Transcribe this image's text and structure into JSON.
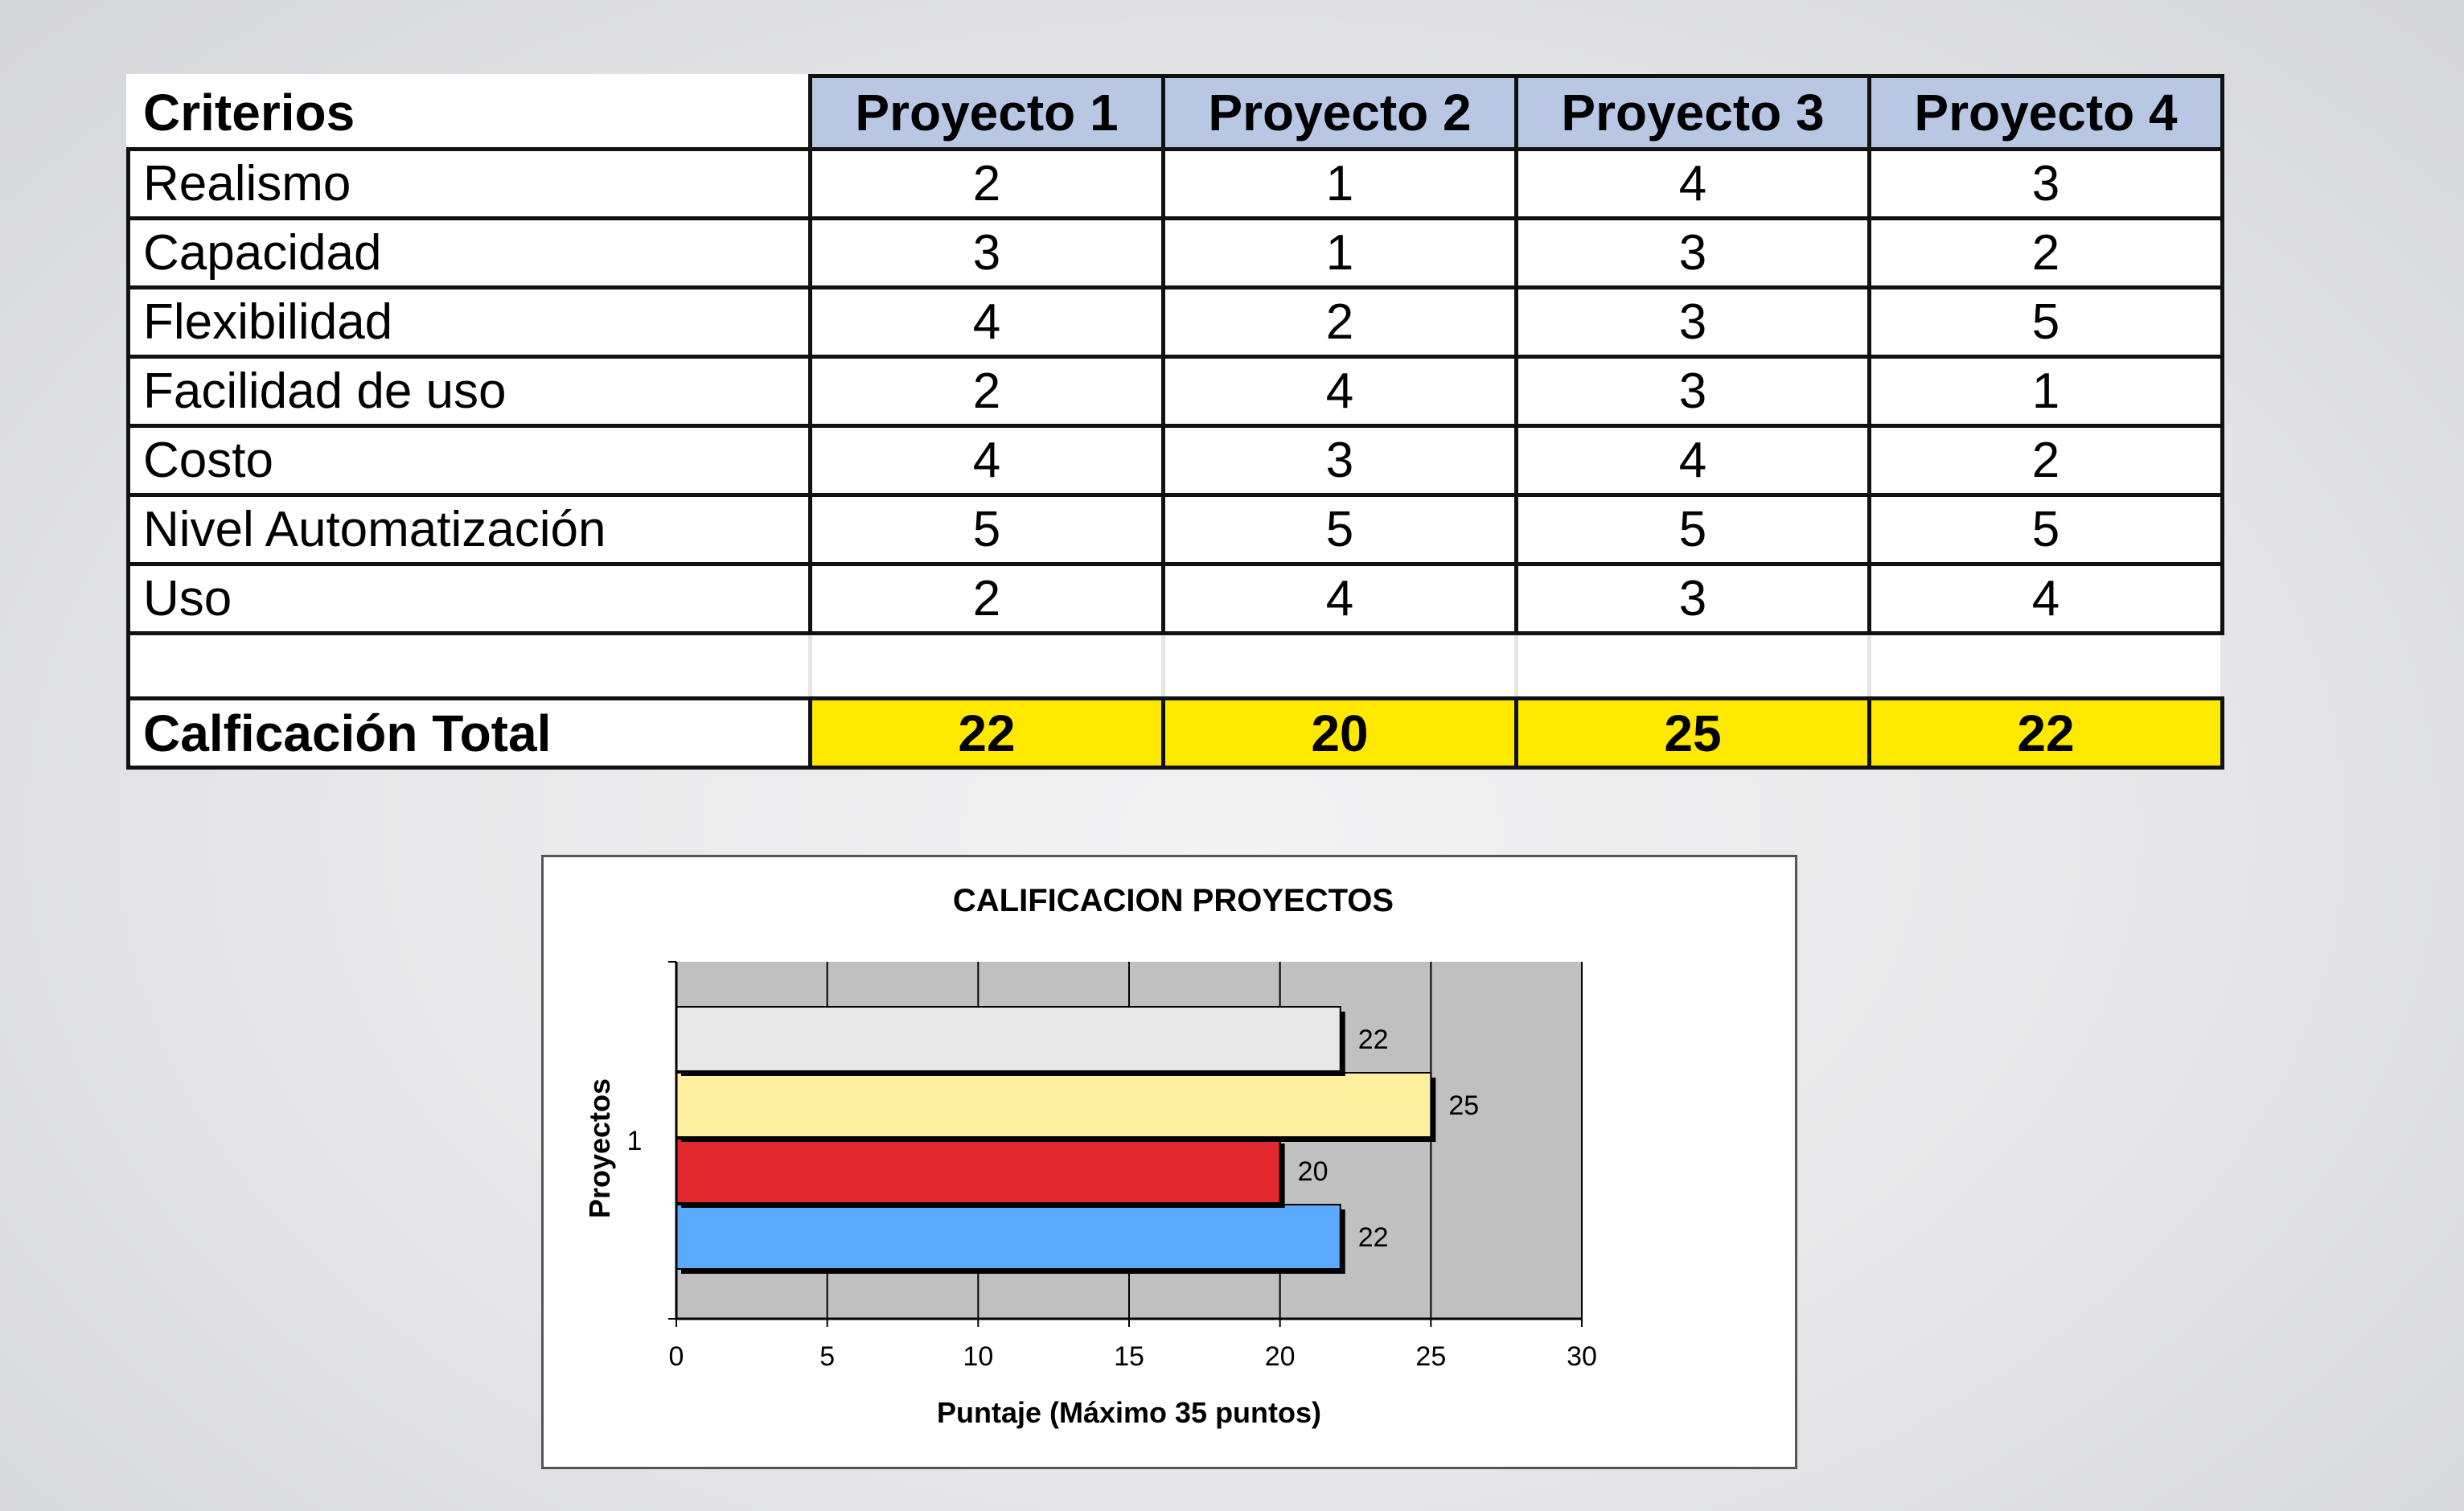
{
  "table": {
    "header": {
      "criteria_label": "Criterios",
      "projects": [
        "Proyecto 1",
        "Proyecto 2",
        "Proyecto 3",
        "Proyecto 4"
      ]
    },
    "rows": [
      {
        "criterion": "Realismo",
        "values": [
          "2",
          "1",
          "4",
          "3"
        ]
      },
      {
        "criterion": "Capacidad",
        "values": [
          "3",
          "1",
          "3",
          "2"
        ]
      },
      {
        "criterion": "Flexibilidad",
        "values": [
          "4",
          "2",
          "3",
          "5"
        ]
      },
      {
        "criterion": "Facilidad de uso",
        "values": [
          "2",
          "4",
          "3",
          "1"
        ]
      },
      {
        "criterion": "Costo",
        "values": [
          "4",
          "3",
          "4",
          "2"
        ]
      },
      {
        "criterion": "Nivel Automatización",
        "values": [
          "5",
          "5",
          "5",
          "5"
        ]
      },
      {
        "criterion": "Uso",
        "values": [
          "2",
          "4",
          "3",
          "4"
        ]
      }
    ],
    "total": {
      "label": "Calficación Total",
      "values": [
        "22",
        "20",
        "25",
        "22"
      ]
    }
  },
  "colors": {
    "header_fill": "#b7c7e4",
    "total_fill": "#ffe900",
    "plot_background": "#c0c0c0",
    "bar_colors": [
      "#5aaaff",
      "#e0282d",
      "#fff0a0",
      "#e8e8e8"
    ]
  },
  "chart_data": {
    "type": "bar",
    "orientation": "horizontal",
    "title": "CALIFICACION PROYECTOS",
    "xlabel": "Puntaje (Máximo 35 puntos)",
    "ylabel": "Proyectos",
    "categories": [
      "1"
    ],
    "xlim": [
      0,
      30
    ],
    "xticks": [
      "0",
      "5",
      "10",
      "15",
      "20",
      "25",
      "30"
    ],
    "grid": true,
    "legend": "none",
    "series": [
      {
        "values": [
          22
        ],
        "color": "#5aaaff"
      },
      {
        "values": [
          20
        ],
        "color": "#e0282d"
      },
      {
        "values": [
          25
        ],
        "color": "#fff0a0"
      },
      {
        "values": [
          22
        ],
        "color": "#e8e8e8"
      }
    ]
  }
}
